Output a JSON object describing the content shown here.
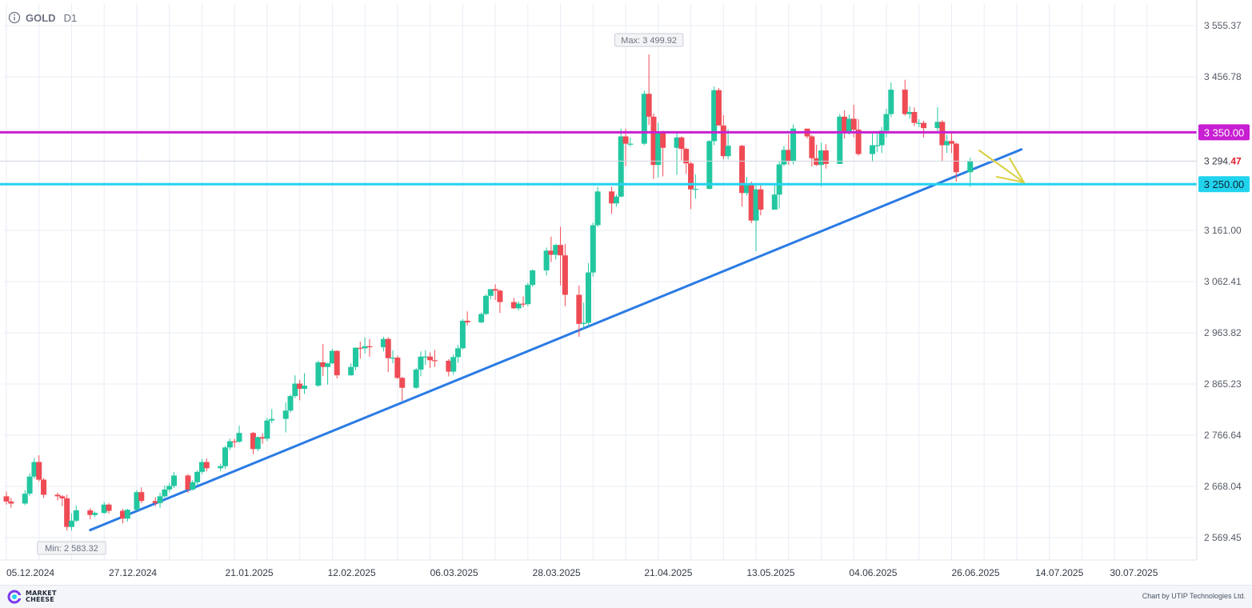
{
  "header": {
    "symbol": "GOLD",
    "timeframe": "D1",
    "info_icon": "info-icon"
  },
  "footer": {
    "brand_line1": "MARKET",
    "brand_line2": "CHEESE",
    "credit": "Chart by UTIP Technologies Ltd."
  },
  "colors": {
    "bull": "#22c7a0",
    "bear": "#ef4b55",
    "resistance": "#c71fd1",
    "support": "#22d3ee",
    "trendline": "#2b7be4",
    "arrow": "#d9cf3f",
    "grid": "#e8edf5"
  },
  "chart_data": {
    "type": "candlestick",
    "title": "GOLD D1",
    "ylim": [
      2540,
      3590
    ],
    "y_ticks": [
      "3 555.37",
      "3 456.78",
      "3 161.00",
      "3 062.41",
      "2 963.82",
      "2 865.23",
      "2 766.64",
      "2 668.04",
      "2 569.45"
    ],
    "x_start_date": "2024-12-05",
    "x_end_date": "2025-08-04",
    "x_ticks": [
      "05.12.2024",
      "27.12.2024",
      "21.01.2025",
      "12.02.2025",
      "06.03.2025",
      "28.03.2025",
      "21.04.2025",
      "13.05.2025",
      "04.06.2025",
      "26.06.2025",
      "14.07.2025",
      "30.07.2025"
    ],
    "current_price": {
      "main": "3 294.",
      "suffix": "47",
      "value": 3294.47
    },
    "horizontal_levels": [
      {
        "label": "3 350.00",
        "value": 3350.0,
        "color": "#c71fd1"
      },
      {
        "label": "3 250.00",
        "value": 3250.0,
        "color": "#22d3ee"
      }
    ],
    "trendline": {
      "from": [
        "2024-12-23",
        2584
      ],
      "to": [
        "2025-07-11",
        3317
      ]
    },
    "max_marker": {
      "label": "Max: 3 499.92",
      "date": "2025-04-22",
      "value": 3499.92
    },
    "min_marker": {
      "label": "Min: 2 583.32",
      "date": "2024-12-19",
      "value": 2583.32
    },
    "candles": [
      [
        "2024-12-05",
        2649,
        2658,
        2633,
        2639
      ],
      [
        "2024-12-06",
        2639,
        2646,
        2627,
        2635
      ],
      [
        "2024-12-09",
        2635,
        2661,
        2632,
        2654
      ],
      [
        "2024-12-10",
        2654,
        2693,
        2650,
        2687
      ],
      [
        "2024-12-11",
        2687,
        2723,
        2683,
        2715
      ],
      [
        "2024-12-12",
        2715,
        2728,
        2677,
        2681
      ],
      [
        "2024-12-13",
        2681,
        2684,
        2646,
        2652
      ],
      [
        "2024-12-16",
        2652,
        2656,
        2641,
        2649
      ],
      [
        "2024-12-17",
        2649,
        2651,
        2630,
        2645
      ],
      [
        "2024-12-18",
        2645,
        2652,
        2583,
        2590
      ],
      [
        "2024-12-19",
        2590,
        2616,
        2583,
        2602
      ],
      [
        "2024-12-20",
        2602,
        2631,
        2599,
        2622
      ],
      [
        "2024-12-23",
        2622,
        2626,
        2605,
        2613
      ],
      [
        "2024-12-24",
        2613,
        2620,
        2609,
        2617
      ],
      [
        "2024-12-26",
        2617,
        2638,
        2615,
        2633
      ],
      [
        "2024-12-27",
        2633,
        2636,
        2616,
        2621
      ],
      [
        "2024-12-30",
        2621,
        2625,
        2597,
        2606
      ],
      [
        "2024-12-31",
        2606,
        2625,
        2600,
        2623
      ],
      [
        "2025-01-02",
        2623,
        2661,
        2622,
        2657
      ],
      [
        "2025-01-03",
        2657,
        2666,
        2636,
        2640
      ],
      [
        "2025-01-06",
        2640,
        2647,
        2630,
        2636
      ],
      [
        "2025-01-07",
        2636,
        2656,
        2627,
        2649
      ],
      [
        "2025-01-08",
        2649,
        2670,
        2646,
        2662
      ],
      [
        "2025-01-09",
        2662,
        2675,
        2657,
        2669
      ],
      [
        "2025-01-10",
        2669,
        2696,
        2665,
        2689
      ],
      [
        "2025-01-13",
        2689,
        2692,
        2656,
        2662
      ],
      [
        "2025-01-14",
        2662,
        2680,
        2660,
        2676
      ],
      [
        "2025-01-15",
        2676,
        2699,
        2670,
        2696
      ],
      [
        "2025-01-16",
        2696,
        2721,
        2692,
        2715
      ],
      [
        "2025-01-17",
        2715,
        2722,
        2697,
        2703
      ],
      [
        "2025-01-20",
        2703,
        2712,
        2697,
        2707
      ],
      [
        "2025-01-21",
        2707,
        2746,
        2702,
        2743
      ],
      [
        "2025-01-22",
        2743,
        2760,
        2738,
        2755
      ],
      [
        "2025-01-23",
        2755,
        2760,
        2743,
        2754
      ],
      [
        "2025-01-24",
        2754,
        2785,
        2752,
        2771
      ],
      [
        "2025-01-27",
        2771,
        2773,
        2730,
        2740
      ],
      [
        "2025-01-28",
        2740,
        2764,
        2736,
        2763
      ],
      [
        "2025-01-29",
        2763,
        2770,
        2750,
        2760
      ],
      [
        "2025-01-30",
        2760,
        2800,
        2755,
        2795
      ],
      [
        "2025-01-31",
        2795,
        2817,
        2790,
        2798
      ],
      [
        "2025-02-03",
        2798,
        2830,
        2772,
        2814
      ],
      [
        "2025-02-04",
        2814,
        2845,
        2810,
        2842
      ],
      [
        "2025-02-05",
        2842,
        2882,
        2838,
        2866
      ],
      [
        "2025-02-06",
        2866,
        2873,
        2834,
        2856
      ],
      [
        "2025-02-07",
        2856,
        2886,
        2846,
        2862
      ],
      [
        "2025-02-10",
        2862,
        2910,
        2860,
        2907
      ],
      [
        "2025-02-11",
        2907,
        2942,
        2881,
        2898
      ],
      [
        "2025-02-12",
        2898,
        2906,
        2864,
        2905
      ],
      [
        "2025-02-13",
        2905,
        2933,
        2903,
        2929
      ],
      [
        "2025-02-14",
        2929,
        2930,
        2876,
        2882
      ],
      [
        "2025-02-17",
        2882,
        2905,
        2881,
        2898
      ],
      [
        "2025-02-18",
        2898,
        2936,
        2892,
        2935
      ],
      [
        "2025-02-19",
        2935,
        2947,
        2914,
        2934
      ],
      [
        "2025-02-20",
        2934,
        2955,
        2924,
        2938
      ],
      [
        "2025-02-21",
        2938,
        2952,
        2918,
        2936
      ],
      [
        "2025-02-24",
        2936,
        2956,
        2928,
        2952
      ],
      [
        "2025-02-25",
        2952,
        2955,
        2888,
        2915
      ],
      [
        "2025-02-26",
        2915,
        2930,
        2905,
        2916
      ],
      [
        "2025-02-27",
        2916,
        2920,
        2875,
        2877
      ],
      [
        "2025-02-28",
        2877,
        2879,
        2833,
        2858
      ],
      [
        "2025-03-03",
        2858,
        2896,
        2856,
        2893
      ],
      [
        "2025-03-04",
        2893,
        2928,
        2880,
        2918
      ],
      [
        "2025-03-05",
        2918,
        2930,
        2902,
        2918
      ],
      [
        "2025-03-06",
        2918,
        2926,
        2896,
        2911
      ],
      [
        "2025-03-07",
        2911,
        2931,
        2898,
        2910
      ],
      [
        "2025-03-10",
        2910,
        2913,
        2880,
        2889
      ],
      [
        "2025-03-11",
        2889,
        2922,
        2883,
        2917
      ],
      [
        "2025-03-12",
        2917,
        2940,
        2906,
        2934
      ],
      [
        "2025-03-13",
        2934,
        2990,
        2932,
        2987
      ],
      [
        "2025-03-14",
        2987,
        3005,
        2978,
        2984
      ],
      [
        "2025-03-17",
        2984,
        3003,
        2982,
        3000
      ],
      [
        "2025-03-18",
        3000,
        3038,
        2998,
        3035
      ],
      [
        "2025-03-19",
        3035,
        3045,
        3028,
        3048
      ],
      [
        "2025-03-20",
        3048,
        3057,
        3027,
        3045
      ],
      [
        "2025-03-21",
        3045,
        3047,
        3002,
        3023
      ],
      [
        "2025-03-24",
        3023,
        3031,
        3010,
        3011
      ],
      [
        "2025-03-25",
        3011,
        3024,
        3007,
        3020
      ],
      [
        "2025-03-26",
        3020,
        3034,
        3013,
        3019
      ],
      [
        "2025-03-27",
        3019,
        3060,
        3015,
        3056
      ],
      [
        "2025-03-28",
        3056,
        3086,
        3052,
        3084
      ],
      [
        "2025-03-31",
        3084,
        3128,
        3074,
        3122
      ],
      [
        "2025-04-01",
        3122,
        3149,
        3100,
        3114
      ],
      [
        "2025-04-02",
        3114,
        3135,
        3105,
        3133
      ],
      [
        "2025-04-03",
        3133,
        3168,
        3055,
        3113
      ],
      [
        "2025-04-04",
        3113,
        3135,
        3015,
        3037
      ],
      [
        "2025-04-07",
        3037,
        3055,
        2956,
        2981
      ],
      [
        "2025-04-08",
        2981,
        3022,
        2970,
        2983
      ],
      [
        "2025-04-09",
        2983,
        3098,
        2975,
        3080
      ],
      [
        "2025-04-10",
        3080,
        3176,
        3072,
        3171
      ],
      [
        "2025-04-11",
        3171,
        3245,
        3168,
        3236
      ],
      [
        "2025-04-14",
        3236,
        3245,
        3193,
        3213
      ],
      [
        "2025-04-15",
        3213,
        3230,
        3207,
        3226
      ],
      [
        "2025-04-16",
        3226,
        3357,
        3225,
        3342
      ],
      [
        "2025-04-17",
        3342,
        3357,
        3285,
        3328
      ],
      [
        "2025-04-18",
        3328,
        3340,
        3322,
        3328
      ],
      [
        "2025-04-21",
        3328,
        3430,
        3325,
        3424
      ],
      [
        "2025-04-22",
        3424,
        3499.92,
        3364,
        3380
      ],
      [
        "2025-04-23",
        3380,
        3386,
        3260,
        3287
      ],
      [
        "2025-04-24",
        3287,
        3368,
        3263,
        3349
      ],
      [
        "2025-04-25",
        3349,
        3353,
        3265,
        3320
      ],
      [
        "2025-04-28",
        3320,
        3350,
        3268,
        3340
      ],
      [
        "2025-04-29",
        3340,
        3342,
        3296,
        3318
      ],
      [
        "2025-04-30",
        3318,
        3320,
        3270,
        3290
      ],
      [
        "2025-05-01",
        3290,
        3293,
        3202,
        3240
      ],
      [
        "2025-05-02",
        3240,
        3269,
        3222,
        3241
      ],
      [
        "2025-05-05",
        3241,
        3335,
        3240,
        3333
      ],
      [
        "2025-05-06",
        3333,
        3438,
        3325,
        3431
      ],
      [
        "2025-05-07",
        3431,
        3435,
        3368,
        3363
      ],
      [
        "2025-05-08",
        3363,
        3383,
        3298,
        3304
      ],
      [
        "2025-05-09",
        3304,
        3356,
        3298,
        3324
      ],
      [
        "2025-05-12",
        3324,
        3326,
        3207,
        3233
      ],
      [
        "2025-05-13",
        3233,
        3264,
        3228,
        3250
      ],
      [
        "2025-05-14",
        3250,
        3255,
        3175,
        3180
      ],
      [
        "2025-05-15",
        3180,
        3250,
        3121,
        3240
      ],
      [
        "2025-05-16",
        3240,
        3252,
        3190,
        3201
      ],
      [
        "2025-05-19",
        3201,
        3250,
        3204,
        3230
      ],
      [
        "2025-05-20",
        3230,
        3295,
        3203,
        3288
      ],
      [
        "2025-05-21",
        3288,
        3324,
        3285,
        3316
      ],
      [
        "2025-05-22",
        3316,
        3346,
        3287,
        3294
      ],
      [
        "2025-05-23",
        3294,
        3365,
        3288,
        3357
      ],
      [
        "2025-05-26",
        3357,
        3355,
        3338,
        3342
      ],
      [
        "2025-05-27",
        3342,
        3345,
        3284,
        3300
      ],
      [
        "2025-05-28",
        3300,
        3326,
        3285,
        3287
      ],
      [
        "2025-05-29",
        3287,
        3330,
        3246,
        3315
      ],
      [
        "2025-05-30",
        3315,
        3327,
        3280,
        3289
      ],
      [
        "2025-06-02",
        3289,
        3385,
        3289,
        3380
      ],
      [
        "2025-06-03",
        3380,
        3392,
        3338,
        3351
      ],
      [
        "2025-06-04",
        3351,
        3384,
        3345,
        3376
      ],
      [
        "2025-06-05",
        3376,
        3403,
        3340,
        3355
      ],
      [
        "2025-06-06",
        3355,
        3375,
        3305,
        3308
      ],
      [
        "2025-06-09",
        3308,
        3348,
        3293,
        3325
      ],
      [
        "2025-06-10",
        3325,
        3350,
        3312,
        3325
      ],
      [
        "2025-06-11",
        3325,
        3360,
        3310,
        3353
      ],
      [
        "2025-06-12",
        3353,
        3395,
        3340,
        3385
      ],
      [
        "2025-06-13",
        3385,
        3446,
        3379,
        3432
      ],
      [
        "2025-06-16",
        3432,
        3451,
        3382,
        3385
      ],
      [
        "2025-06-17",
        3385,
        3400,
        3376,
        3389
      ],
      [
        "2025-06-18",
        3389,
        3398,
        3362,
        3368
      ],
      [
        "2025-06-19",
        3368,
        3375,
        3360,
        3368
      ],
      [
        "2025-06-20",
        3368,
        3372,
        3340,
        3358
      ],
      [
        "2025-06-23",
        3358,
        3398,
        3348,
        3370
      ],
      [
        "2025-06-24",
        3370,
        3373,
        3295,
        3325
      ],
      [
        "2025-06-25",
        3325,
        3345,
        3310,
        3333
      ],
      [
        "2025-06-26",
        3333,
        3350,
        3310,
        3328
      ],
      [
        "2025-06-27",
        3328,
        3330,
        3255,
        3273
      ],
      [
        "2025-06-30",
        3273,
        3301,
        3245,
        3294.47
      ]
    ]
  }
}
